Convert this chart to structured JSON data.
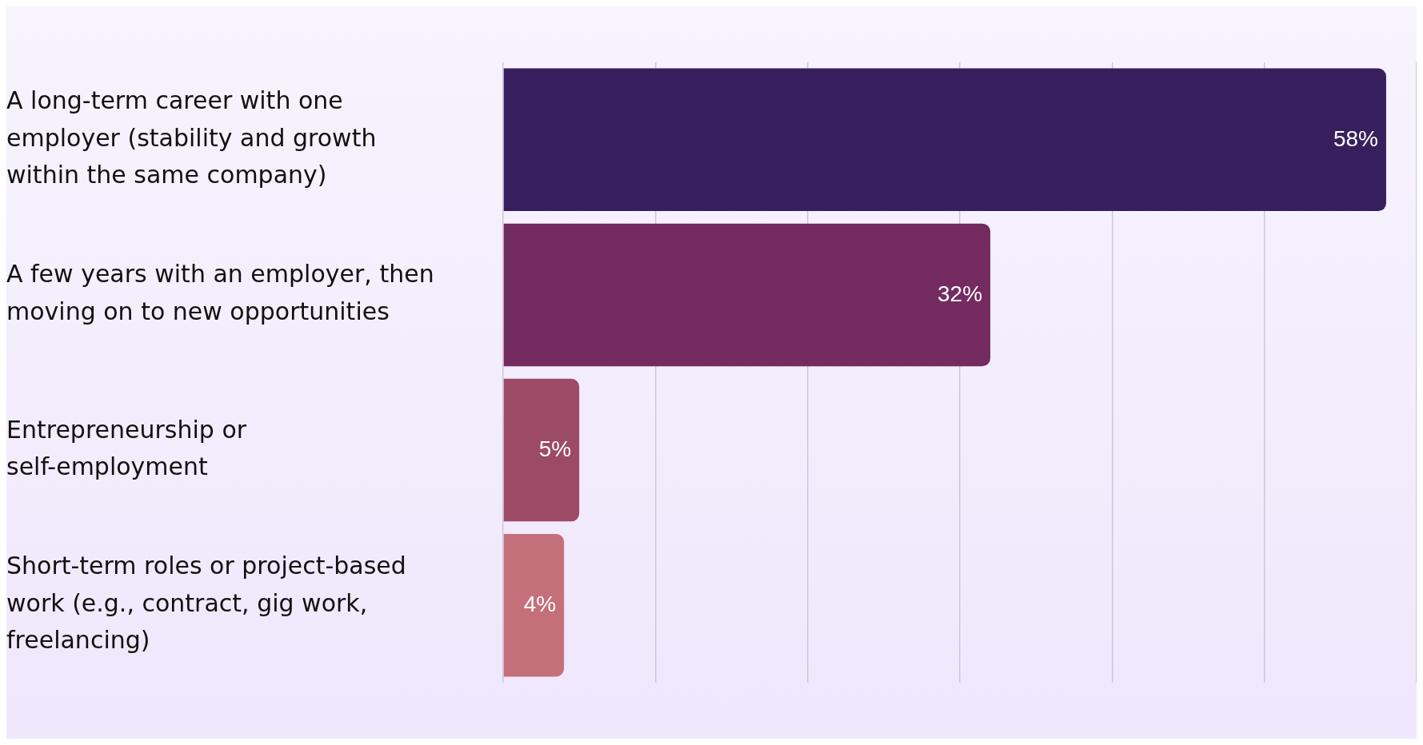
{
  "chart_data": {
    "type": "bar",
    "orientation": "horizontal",
    "categories": [
      "A long-term career with one employer (stability and growth within the same company)",
      "A few years with an employer, then moving on to new opportunities",
      "Entrepreneurship or self-employment",
      "Short-term roles or project-based work (e.g., contract, gig work, freelancing)"
    ],
    "values": [
      58,
      32,
      5,
      4
    ],
    "colors": [
      "#371f5e",
      "#732b60",
      "#9c4a66",
      "#c4707a"
    ],
    "value_labels": [
      "58%",
      "32%",
      "5%",
      "4%"
    ],
    "grid": "x",
    "tick_labels": "y"
  }
}
